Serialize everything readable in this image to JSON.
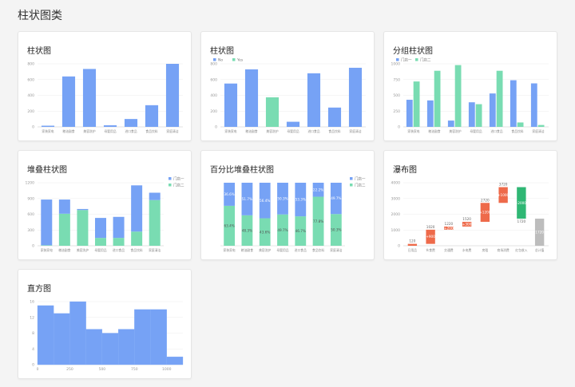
{
  "page": {
    "title": "柱状图类"
  },
  "colors": {
    "blue": "#76a2f5",
    "green": "#79dcb2",
    "orange": "#ee6a4a",
    "dkgreen": "#2fb774",
    "gray": "#bdbdbd"
  },
  "chart_data": [
    {
      "id": "bar1",
      "type": "bar",
      "title": "柱状图",
      "categories": [
        "家装家电",
        "粮油副食",
        "美容洗护",
        "母婴用品",
        "进口食品",
        "食品饮料",
        "家庭清洁"
      ],
      "values": [
        15,
        640,
        735,
        20,
        100,
        275,
        800
      ],
      "ylim": [
        0,
        800
      ],
      "yticks": [
        0,
        200,
        400,
        600,
        800
      ]
    },
    {
      "id": "bar2",
      "type": "bar",
      "title": "柱状图",
      "legend": [
        "No",
        "Yes"
      ],
      "categories": [
        "家装家电",
        "粮油副食",
        "美容洗护",
        "母婴用品",
        "进口食品",
        "食品饮料",
        "家庭清洁"
      ],
      "values": [
        550,
        730,
        375,
        65,
        680,
        245,
        750
      ],
      "series_index": [
        0,
        0,
        1,
        0,
        0,
        0,
        0
      ],
      "ylim": [
        0,
        800
      ],
      "yticks": [
        0,
        200,
        400,
        600,
        800
      ]
    },
    {
      "id": "group",
      "type": "bar",
      "title": "分组柱状图",
      "categories": [
        "家装家电",
        "粮油副食",
        "美容洗护",
        "母婴用品",
        "进口食品",
        "食品饮料",
        "家庭清洁"
      ],
      "series": [
        {
          "name": "门店一",
          "values": [
            430,
            420,
            100,
            390,
            530,
            740,
            690
          ]
        },
        {
          "name": "门店二",
          "values": [
            720,
            890,
            980,
            360,
            890,
            70,
            30
          ]
        }
      ],
      "ylim": [
        0,
        1000
      ],
      "yticks": [
        0,
        250,
        500,
        750,
        1000
      ]
    },
    {
      "id": "stack",
      "type": "bar",
      "title": "堆叠柱状图",
      "categories": [
        "家装家电",
        "粮油副食",
        "美容洗护",
        "母婴用品",
        "进口食品",
        "食品饮料",
        "家庭清洁"
      ],
      "series": [
        {
          "name": "门店一",
          "values": [
            870,
            270,
            20,
            380,
            400,
            880,
            140
          ]
        },
        {
          "name": "门店二",
          "values": [
            10,
            610,
            680,
            150,
            150,
            270,
            870
          ]
        }
      ],
      "ylim": [
        0,
        1200
      ],
      "yticks": [
        0,
        300,
        600,
        900,
        1200
      ]
    },
    {
      "id": "percent",
      "type": "bar",
      "title": "百分比堆叠柱状图",
      "categories": [
        "家装家电",
        "粮油副食",
        "美容洗护",
        "母婴用品",
        "进口食品",
        "食品饮料",
        "家庭清洁"
      ],
      "series": [
        {
          "name": "门店一",
          "values": [
            36.6,
            51.7,
            56.4,
            50.3,
            53.3,
            22.2,
            49.7
          ],
          "labels": [
            "36.6%",
            "51.7%",
            "56.4%",
            "50.3%",
            "53.3%",
            "22.2%",
            "49.7%"
          ]
        },
        {
          "name": "门店二",
          "values": [
            63.4,
            48.3,
            43.6,
            49.7,
            46.7,
            77.8,
            50.3
          ],
          "labels": [
            "63.4%",
            "48.3%",
            "43.6%",
            "49.7%",
            "46.7%",
            "77.8%",
            "50.3%"
          ]
        }
      ]
    },
    {
      "id": "waterfall",
      "type": "bar",
      "title": "瀑布图",
      "categories": [
        "日用品",
        "伙食费",
        "交通费",
        "水电费",
        "房租",
        "商场消费",
        "红包收入",
        "总计值"
      ],
      "steps": [
        {
          "base": 0,
          "top": 120,
          "kind": "up",
          "top_label": "120",
          "delta_label": ""
        },
        {
          "base": 120,
          "top": 1020,
          "kind": "up",
          "top_label": "1020",
          "delta_label": "+900"
        },
        {
          "base": 1020,
          "top": 1220,
          "kind": "up",
          "top_label": "1220",
          "delta_label": "+200"
        },
        {
          "base": 1220,
          "top": 1520,
          "kind": "up",
          "top_label": "1520",
          "delta_label": "+300"
        },
        {
          "base": 1520,
          "top": 2720,
          "kind": "up",
          "top_label": "2720",
          "delta_label": "+1200"
        },
        {
          "base": 2720,
          "top": 3720,
          "kind": "up",
          "top_label": "3720",
          "delta_label": "+1000"
        },
        {
          "base": 1720,
          "top": 3720,
          "kind": "down",
          "top_label": "",
          "delta_label": "-2000",
          "bottom_label": "1720"
        },
        {
          "base": 0,
          "top": 1720,
          "kind": "total",
          "top_label": "",
          "delta_label": "1720"
        }
      ],
      "ylim": [
        0,
        4000
      ],
      "yticks": [
        0,
        1000,
        2000,
        3000,
        4000
      ]
    },
    {
      "id": "hist",
      "type": "bar",
      "title": "直方图",
      "bins": [
        [
          0,
          125,
          15
        ],
        [
          125,
          250,
          13
        ],
        [
          250,
          375,
          16
        ],
        [
          375,
          500,
          9
        ],
        [
          500,
          625,
          8
        ],
        [
          625,
          750,
          9
        ],
        [
          750,
          875,
          14
        ],
        [
          875,
          1000,
          14
        ],
        [
          1000,
          1125,
          2
        ]
      ],
      "xlim": [
        0,
        1125
      ],
      "xticks": [
        0,
        250,
        500,
        750,
        1000
      ],
      "ylim": [
        0,
        16
      ],
      "yticks": [
        0,
        4,
        8,
        12,
        16
      ]
    }
  ]
}
